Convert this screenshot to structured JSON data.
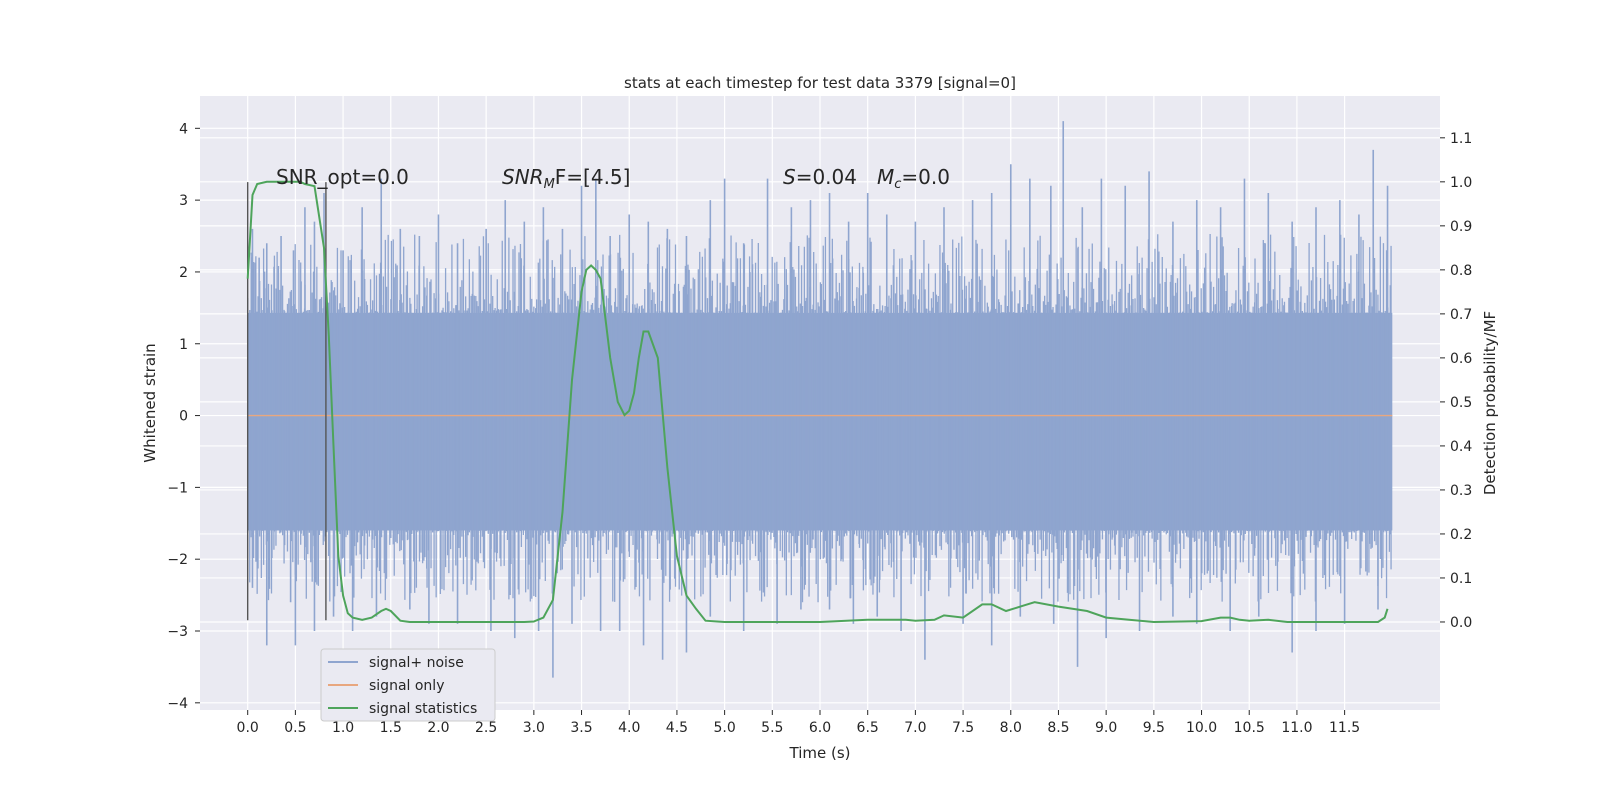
{
  "chart_data": {
    "type": "line",
    "title": "stats at each timestep for test data 3379 [signal=0]",
    "xlabel": "Time (s)",
    "ylabel": "Whitened strain",
    "y2label": "Detection probability/MF",
    "xlim": [
      -0.5,
      12.5
    ],
    "ylim": [
      -4.1,
      4.45
    ],
    "y2lim": [
      -0.2,
      1.195
    ],
    "x_ticks": [
      "0.0",
      "0.5",
      "1.0",
      "1.5",
      "2.0",
      "2.5",
      "3.0",
      "3.5",
      "4.0",
      "4.5",
      "5.0",
      "5.5",
      "6.0",
      "6.5",
      "7.0",
      "7.5",
      "8.0",
      "8.5",
      "9.0",
      "9.5",
      "10.0",
      "10.5",
      "11.0",
      "11.5"
    ],
    "y_ticks": [
      "4",
      "3",
      "2",
      "1",
      "0",
      "−1",
      "−2",
      "−3",
      "−4"
    ],
    "y2_ticks": [
      "1.1",
      "1.0",
      "0.9",
      "0.8",
      "0.7",
      "0.6",
      "0.5",
      "0.4",
      "0.3",
      "0.2",
      "0.1",
      "0.0"
    ],
    "grid": true,
    "background": "#EAEAF2",
    "legend_position": "lower-left",
    "annotations": {
      "snr_opt": "SNR_opt=0.0",
      "snr_mf_base": "SNR",
      "snr_mf_sub": "M",
      "snr_mf_rest": "F=[4.5]",
      "s_label": "S",
      "s_value": "=0.04",
      "mc_label": "M",
      "mc_sub": "c",
      "mc_value": "=0.0"
    },
    "markers": [
      {
        "x": 0.0,
        "y_range": [
          -2.85,
          3.25
        ]
      },
      {
        "x": 0.82,
        "y_range": [
          -2.85,
          3.25
        ]
      }
    ],
    "series": [
      {
        "name": "signal+ noise",
        "color": "#8FA5CF",
        "axis": "left",
        "x_range": [
          0.0,
          12.0
        ],
        "core_band": [
          -1.6,
          1.43
        ],
        "spikes_up": [
          [
            0.05,
            2.6
          ],
          [
            0.12,
            2.2
          ],
          [
            0.2,
            2.4
          ],
          [
            0.35,
            2.5
          ],
          [
            0.48,
            2.3
          ],
          [
            0.6,
            2.9
          ],
          [
            0.7,
            2.7
          ],
          [
            0.8,
            3.1
          ],
          [
            1.0,
            2.3
          ],
          [
            1.2,
            2.9
          ],
          [
            1.4,
            3.3
          ],
          [
            1.6,
            2.6
          ],
          [
            1.8,
            2.5
          ],
          [
            2.0,
            2.8
          ],
          [
            2.2,
            2.4
          ],
          [
            2.5,
            2.6
          ],
          [
            2.7,
            3.0
          ],
          [
            2.9,
            2.7
          ],
          [
            3.1,
            2.9
          ],
          [
            3.3,
            2.6
          ],
          [
            3.5,
            3.2
          ],
          [
            3.65,
            3.3
          ],
          [
            3.8,
            2.5
          ],
          [
            4.0,
            2.8
          ],
          [
            4.2,
            2.7
          ],
          [
            4.4,
            2.6
          ],
          [
            4.6,
            2.5
          ],
          [
            4.85,
            3.0
          ],
          [
            5.0,
            3.3
          ],
          [
            5.2,
            2.4
          ],
          [
            5.45,
            3.3
          ],
          [
            5.7,
            2.9
          ],
          [
            5.9,
            3.0
          ],
          [
            6.1,
            3.1
          ],
          [
            6.3,
            2.7
          ],
          [
            6.5,
            3.1
          ],
          [
            6.7,
            2.8
          ],
          [
            7.0,
            2.7
          ],
          [
            7.3,
            2.9
          ],
          [
            7.6,
            3.0
          ],
          [
            7.8,
            3.1
          ],
          [
            8.0,
            3.5
          ],
          [
            8.2,
            3.3
          ],
          [
            8.42,
            3.2
          ],
          [
            8.55,
            4.1
          ],
          [
            8.75,
            2.9
          ],
          [
            8.95,
            3.3
          ],
          [
            9.2,
            3.2
          ],
          [
            9.45,
            3.4
          ],
          [
            9.7,
            2.7
          ],
          [
            9.95,
            3.0
          ],
          [
            10.2,
            2.9
          ],
          [
            10.45,
            3.3
          ],
          [
            10.7,
            3.1
          ],
          [
            10.95,
            2.7
          ],
          [
            11.2,
            2.9
          ],
          [
            11.45,
            3.0
          ],
          [
            11.65,
            2.8
          ],
          [
            11.8,
            3.7
          ],
          [
            11.95,
            3.2
          ]
        ],
        "spikes_down": [
          [
            0.05,
            -2.4
          ],
          [
            0.2,
            -3.2
          ],
          [
            0.45,
            -2.6
          ],
          [
            0.5,
            -3.2
          ],
          [
            0.7,
            -3.0
          ],
          [
            0.9,
            -2.8
          ],
          [
            1.1,
            -3.0
          ],
          [
            1.35,
            -2.8
          ],
          [
            1.7,
            -2.7
          ],
          [
            1.9,
            -2.9
          ],
          [
            2.2,
            -2.9
          ],
          [
            2.55,
            -3.0
          ],
          [
            2.8,
            -3.1
          ],
          [
            3.05,
            -3.0
          ],
          [
            3.2,
            -3.65
          ],
          [
            3.4,
            -2.9
          ],
          [
            3.7,
            -3.0
          ],
          [
            3.9,
            -3.0
          ],
          [
            4.15,
            -3.2
          ],
          [
            4.35,
            -3.4
          ],
          [
            4.6,
            -3.3
          ],
          [
            4.85,
            -2.8
          ],
          [
            5.2,
            -3.0
          ],
          [
            5.55,
            -2.9
          ],
          [
            5.8,
            -2.7
          ],
          [
            6.1,
            -2.7
          ],
          [
            6.35,
            -2.9
          ],
          [
            6.6,
            -2.8
          ],
          [
            6.85,
            -3.0
          ],
          [
            7.1,
            -3.4
          ],
          [
            7.5,
            -2.9
          ],
          [
            7.8,
            -3.2
          ],
          [
            8.1,
            -2.8
          ],
          [
            8.45,
            -2.9
          ],
          [
            8.7,
            -3.5
          ],
          [
            9.0,
            -3.1
          ],
          [
            9.35,
            -3.0
          ],
          [
            9.7,
            -2.8
          ],
          [
            9.95,
            -2.9
          ],
          [
            10.3,
            -3.0
          ],
          [
            10.6,
            -2.8
          ],
          [
            10.95,
            -3.3
          ],
          [
            11.2,
            -3.0
          ],
          [
            11.5,
            -2.9
          ],
          [
            11.85,
            -2.7
          ]
        ]
      },
      {
        "name": "signal only",
        "color": "#E8A77F",
        "axis": "left",
        "x": [
          0.0,
          12.0
        ],
        "y": [
          0.0,
          0.0
        ]
      },
      {
        "name": "signal statistics",
        "color": "#4EA45B",
        "axis": "right",
        "x": [
          0.0,
          0.05,
          0.1,
          0.2,
          0.3,
          0.4,
          0.5,
          0.55,
          0.6,
          0.7,
          0.8,
          0.85,
          0.9,
          0.95,
          1.0,
          1.05,
          1.1,
          1.2,
          1.3,
          1.4,
          1.45,
          1.5,
          1.6,
          1.7,
          2.0,
          2.5,
          2.9,
          3.0,
          3.1,
          3.2,
          3.3,
          3.4,
          3.5,
          3.55,
          3.6,
          3.65,
          3.7,
          3.8,
          3.88,
          3.95,
          4.0,
          4.05,
          4.1,
          4.15,
          4.2,
          4.3,
          4.4,
          4.5,
          4.6,
          4.7,
          4.8,
          5.0,
          5.5,
          6.0,
          6.5,
          6.9,
          7.0,
          7.2,
          7.3,
          7.5,
          7.7,
          7.8,
          7.95,
          8.1,
          8.25,
          8.5,
          8.8,
          9.0,
          9.5,
          10.0,
          10.2,
          10.3,
          10.4,
          10.5,
          10.7,
          10.9,
          11.5,
          11.85,
          11.92,
          11.95
        ],
        "y": [
          0.78,
          0.97,
          0.995,
          1.0,
          1.0,
          1.0,
          1.0,
          1.0,
          0.995,
          0.99,
          0.85,
          0.65,
          0.4,
          0.15,
          0.06,
          0.02,
          0.01,
          0.005,
          0.01,
          0.025,
          0.03,
          0.025,
          0.003,
          0.0,
          0.0,
          0.0,
          0.0,
          0.001,
          0.01,
          0.05,
          0.25,
          0.55,
          0.75,
          0.8,
          0.81,
          0.8,
          0.78,
          0.6,
          0.5,
          0.47,
          0.48,
          0.52,
          0.6,
          0.66,
          0.66,
          0.6,
          0.35,
          0.15,
          0.06,
          0.03,
          0.003,
          0.0,
          0.0,
          0.0,
          0.005,
          0.005,
          0.003,
          0.005,
          0.015,
          0.01,
          0.04,
          0.04,
          0.025,
          0.035,
          0.045,
          0.035,
          0.025,
          0.01,
          0.0,
          0.002,
          0.01,
          0.01,
          0.005,
          0.003,
          0.005,
          0.0,
          0.0,
          0.0,
          0.01,
          0.03
        ]
      }
    ]
  }
}
